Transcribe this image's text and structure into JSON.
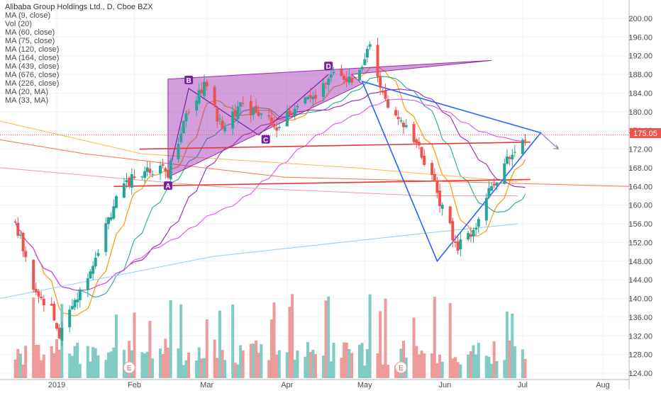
{
  "header": {
    "title": "Alibaba Group Holdings Ltd., D, Cboe BZX",
    "indicators": [
      "MA (9, close)",
      "Vol (20)",
      "MA (60, close)",
      "MA (75, close)",
      "MA (120, close)",
      "MA (164, close)",
      "MA (439, close)",
      "MA (676, close)",
      "MA (226, close)",
      "MA (20, MA)",
      "MA (33, MA)"
    ]
  },
  "price_axis": {
    "ticks": [
      "200.00",
      "196.00",
      "192.00",
      "188.00",
      "184.00",
      "180.00",
      "176.00",
      "172.00",
      "168.00",
      "164.00",
      "160.00",
      "156.00",
      "152.00",
      "148.00",
      "144.00",
      "140.00",
      "136.00",
      "132.00",
      "128.00",
      "124.00"
    ],
    "last_price": "175.05"
  },
  "time_axis": {
    "ticks": [
      "2019",
      "Feb",
      "Mar",
      "Apr",
      "May",
      "Jun",
      "Jul",
      "Aug"
    ]
  },
  "pattern_labels": {
    "a": "A",
    "b": "B",
    "c": "C",
    "d": "D"
  },
  "event_markers": [
    "E",
    "E",
    "E"
  ],
  "colors": {
    "up": "#26a69a",
    "down": "#ef5350",
    "vol_up": "#80cbc4",
    "vol_down": "#ef9a9a",
    "pattern_fill": "#9c27b0",
    "trendline": "#e53935",
    "harmonic": "#2962ff",
    "price_label": "#ef5350"
  },
  "chart_data": {
    "type": "candlestick",
    "title": "Alibaba Group Holdings Ltd., D, Cboe BZX",
    "yrange": [
      122,
      202
    ],
    "x_ticks": [
      "2019",
      "Feb",
      "Mar",
      "Apr",
      "May",
      "Jun",
      "Jul",
      "Aug"
    ],
    "last_price": 175.05,
    "close_path": [
      [
        "2018-12-17",
        156
      ],
      [
        "2018-12-21",
        149
      ],
      [
        "2018-12-24",
        141
      ],
      [
        "2018-12-31",
        138
      ],
      [
        "2019-01-03",
        131
      ],
      [
        "2019-01-10",
        141
      ],
      [
        "2019-01-17",
        149
      ],
      [
        "2019-01-24",
        160
      ],
      [
        "2019-01-31",
        166
      ],
      [
        "2019-02-07",
        168
      ],
      [
        "2019-02-14",
        167
      ],
      [
        "2019-02-21",
        180
      ],
      [
        "2019-02-28",
        186
      ],
      [
        "2019-03-07",
        176
      ],
      [
        "2019-03-14",
        181
      ],
      [
        "2019-03-21",
        180
      ],
      [
        "2019-03-28",
        177
      ],
      [
        "2019-04-04",
        181
      ],
      [
        "2019-04-11",
        183
      ],
      [
        "2019-04-18",
        188
      ],
      [
        "2019-04-25",
        187
      ],
      [
        "2019-04-30",
        189
      ],
      [
        "2019-05-03",
        194
      ],
      [
        "2019-05-09",
        182
      ],
      [
        "2019-05-16",
        178
      ],
      [
        "2019-05-23",
        171
      ],
      [
        "2019-05-30",
        161
      ],
      [
        "2019-06-03",
        155
      ],
      [
        "2019-06-06",
        151
      ],
      [
        "2019-06-12",
        154
      ],
      [
        "2019-06-18",
        163
      ],
      [
        "2019-06-24",
        169
      ],
      [
        "2019-06-28",
        172
      ],
      [
        "2019-07-02",
        175
      ]
    ]
  }
}
